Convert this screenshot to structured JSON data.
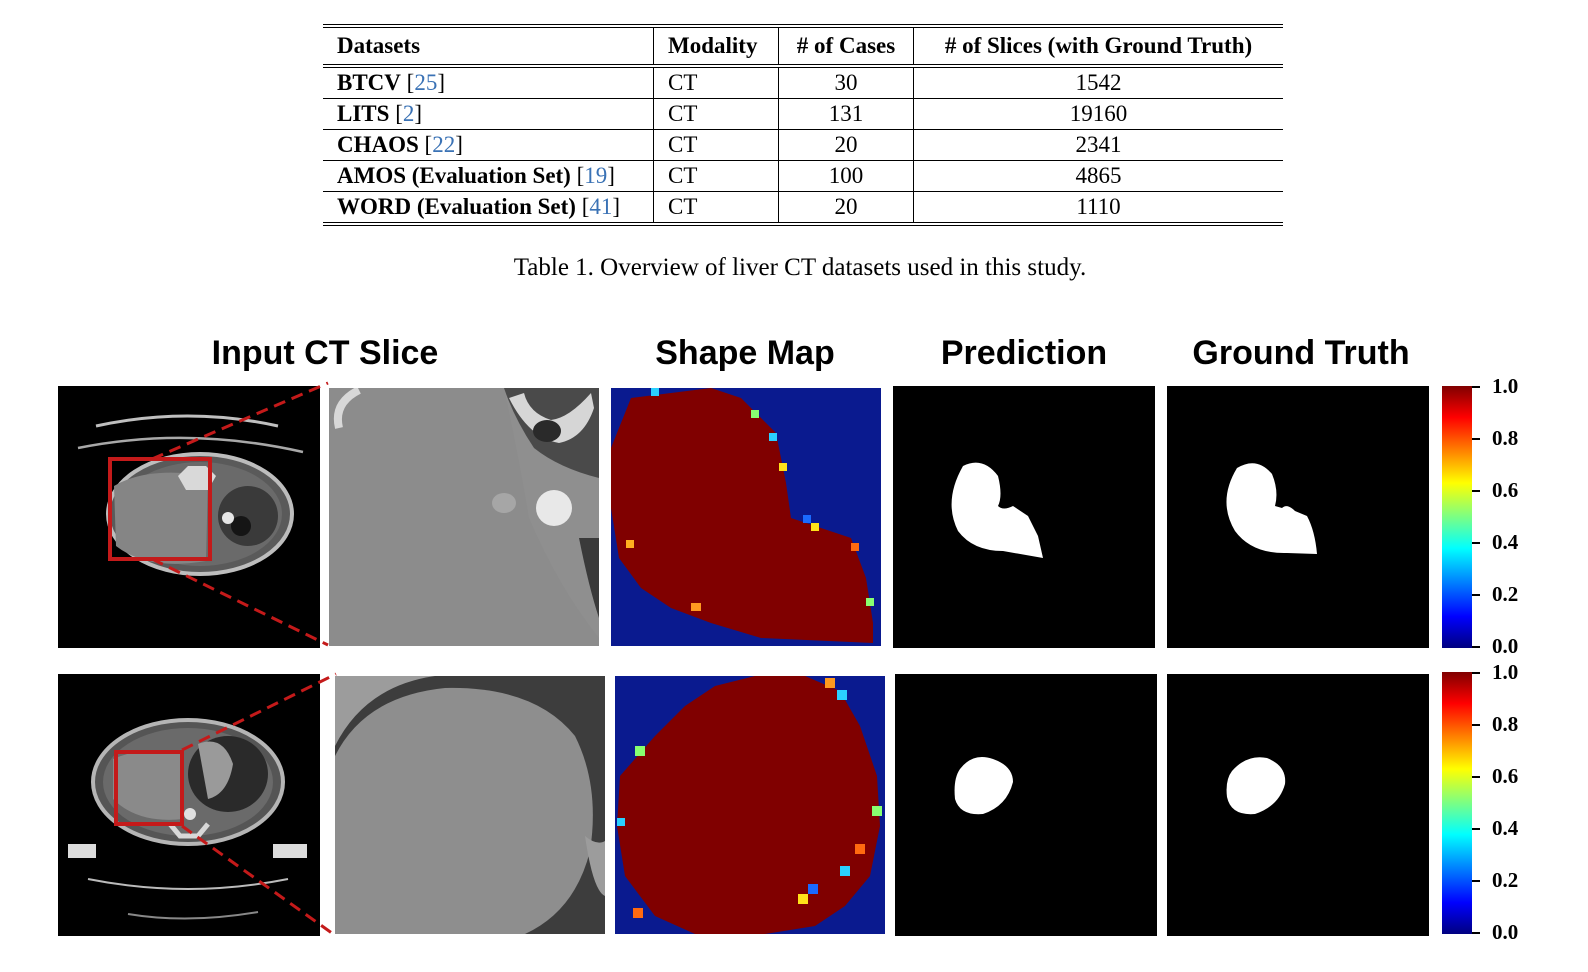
{
  "table": {
    "headers": [
      "Datasets",
      "Modality",
      "# of Cases",
      "# of Slices (with Ground Truth)"
    ],
    "rows": [
      {
        "name": "BTCV",
        "ref": "25",
        "modality": "CT",
        "cases": "30",
        "slices": "1542"
      },
      {
        "name": "LITS",
        "ref": "2",
        "modality": "CT",
        "cases": "131",
        "slices": "19160"
      },
      {
        "name": "CHAOS",
        "ref": "22",
        "modality": "CT",
        "cases": "20",
        "slices": "2341"
      },
      {
        "name": "AMOS (Evaluation Set)",
        "ref": "19",
        "modality": "CT",
        "cases": "100",
        "slices": "4865"
      },
      {
        "name": "WORD (Evaluation Set)",
        "ref": "41",
        "modality": "CT",
        "cases": "20",
        "slices": "1110"
      }
    ],
    "caption": "Table 1. Overview of liver CT datasets used in this study."
  },
  "figure": {
    "column_titles": {
      "input": "Input CT Slice",
      "shape_map": "Shape Map",
      "prediction": "Prediction",
      "ground_truth": "Ground Truth"
    },
    "colorbar": {
      "ticks": [
        "1.0",
        "0.8",
        "0.6",
        "0.4",
        "0.2",
        "0.0"
      ],
      "colormap": "jet",
      "range": [
        0.0,
        1.0
      ]
    },
    "colors": {
      "box": "#c41a1a",
      "shape_high": "#800000",
      "shape_low": "#0a1a8f"
    }
  }
}
